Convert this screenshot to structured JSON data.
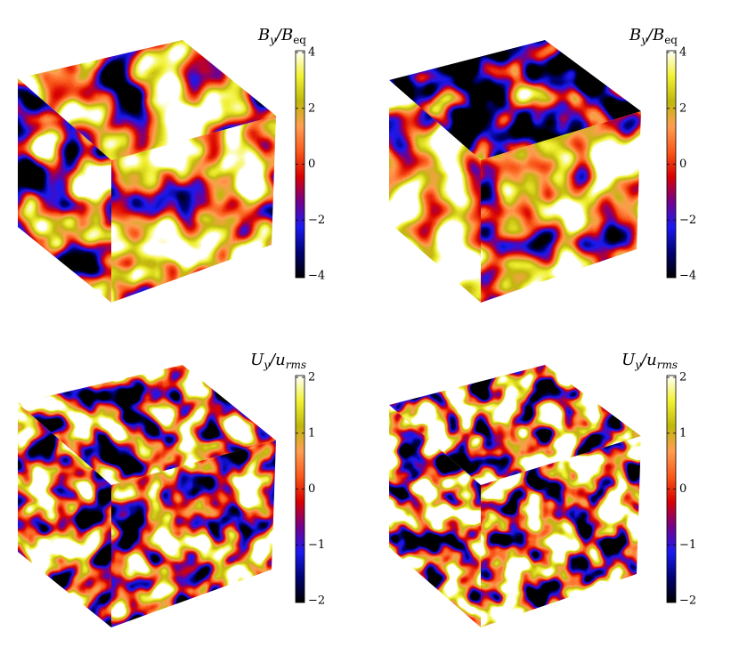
{
  "panels": [
    {
      "label": {
        "num": "B",
        "num_sub": "y",
        "sep": "/",
        "den": "B",
        "den_sub": "eq"
      },
      "ticks": [
        "4",
        "2",
        "0",
        "−2",
        "−4"
      ]
    },
    {
      "label": {
        "num": "B",
        "num_sub": "y",
        "sep": "/",
        "den": "B",
        "den_sub": "eq"
      },
      "ticks": [
        "4",
        "2",
        "0",
        "−2",
        "−4"
      ]
    },
    {
      "label": {
        "num": "U",
        "num_sub": "y",
        "sep": "/",
        "den": "u",
        "den_sub": "rms"
      },
      "ticks": [
        "2",
        "1",
        "0",
        "−1",
        "−2"
      ]
    },
    {
      "label": {
        "num": "U",
        "num_sub": "y",
        "sep": "/",
        "den": "u",
        "den_sub": "rms"
      },
      "ticks": [
        "2",
        "1",
        "0",
        "−1",
        "−2"
      ]
    }
  ]
}
